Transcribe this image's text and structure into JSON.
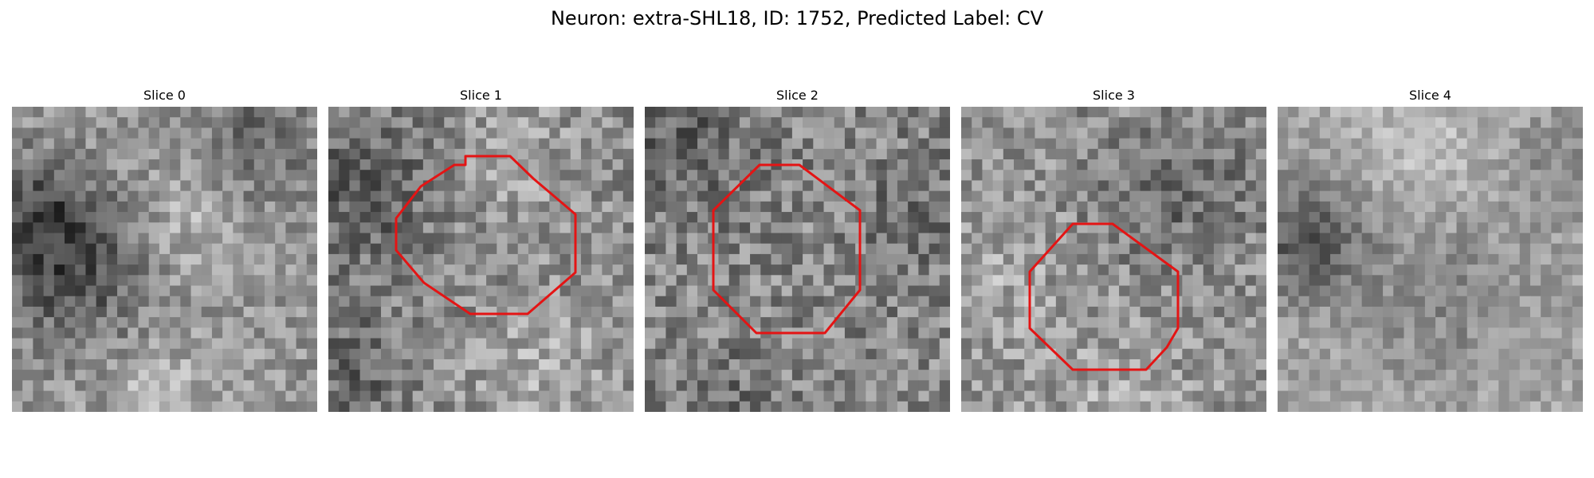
{
  "figure": {
    "title": "Neuron: extra-SHL18, ID: 1752, Predicted Label: CV"
  },
  "colors": {
    "contour": "#e41414",
    "background": "#ffffff"
  },
  "panels": [
    {
      "title": "Slice 0",
      "has_contour": false
    },
    {
      "title": "Slice 1",
      "has_contour": true
    },
    {
      "title": "Slice 2",
      "has_contour": true
    },
    {
      "title": "Slice 3",
      "has_contour": true
    },
    {
      "title": "Slice 4",
      "has_contour": false
    }
  ]
}
